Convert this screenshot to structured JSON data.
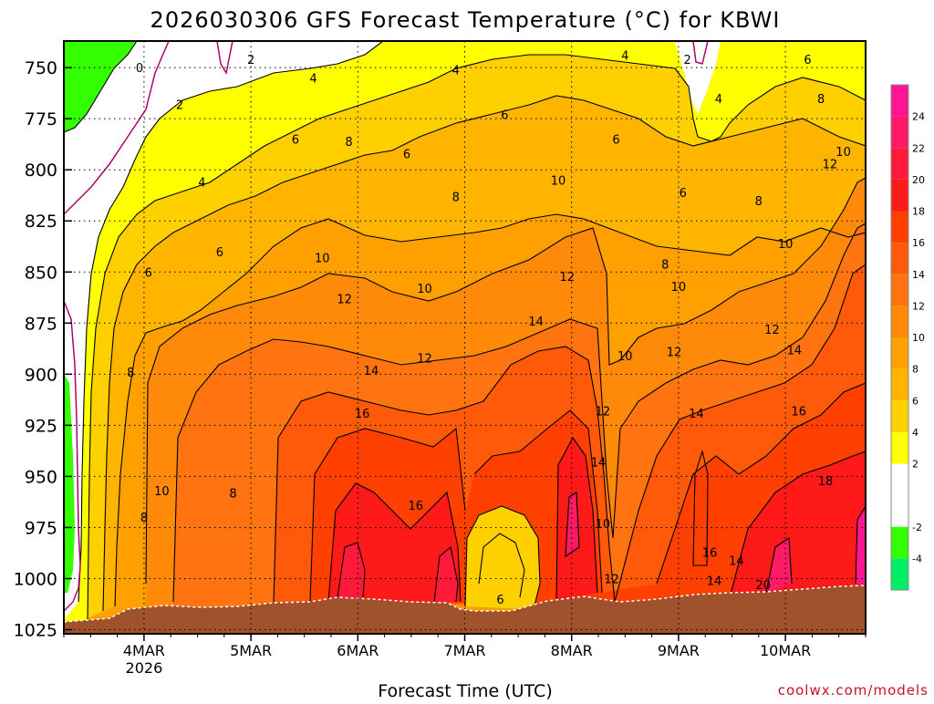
{
  "chart_data": {
    "type": "heatmap",
    "title": "2026030306 GFS Forecast Temperature (°C) for KBWI",
    "xlabel": "Forecast Time (UTC)",
    "ylabel": "",
    "credit": "coolwx.com/models",
    "x_ticks": [
      {
        "label": "4MAR",
        "sublabel": "2026",
        "hours": 18
      },
      {
        "label": "5MAR",
        "hours": 42
      },
      {
        "label": "6MAR",
        "hours": 66
      },
      {
        "label": "7MAR",
        "hours": 90
      },
      {
        "label": "8MAR",
        "hours": 114
      },
      {
        "label": "9MAR",
        "hours": 138
      },
      {
        "label": "10MAR",
        "hours": 162
      }
    ],
    "xlim_hours": [
      0,
      180
    ],
    "y_ticks": [
      750,
      775,
      800,
      825,
      850,
      875,
      900,
      925,
      950,
      975,
      1000,
      1025
    ],
    "ylim_hpa": [
      1027,
      737
    ],
    "grid": true,
    "colorbar": {
      "labels": [
        24,
        22,
        20,
        18,
        16,
        14,
        12,
        10,
        8,
        6,
        4,
        2,
        -2,
        -4
      ],
      "bands": [
        {
          "min": 24,
          "max": 26,
          "color": "#ff1493"
        },
        {
          "min": 22,
          "max": 24,
          "color": "#ff1a66"
        },
        {
          "min": 20,
          "max": 22,
          "color": "#ff1a3c"
        },
        {
          "min": 18,
          "max": 20,
          "color": "#ff1a1a"
        },
        {
          "min": 16,
          "max": 18,
          "color": "#ff4000"
        },
        {
          "min": 14,
          "max": 16,
          "color": "#ff5a0a"
        },
        {
          "min": 12,
          "max": 14,
          "color": "#ff7310"
        },
        {
          "min": 10,
          "max": 12,
          "color": "#ff8a0a"
        },
        {
          "min": 8,
          "max": 10,
          "color": "#ffa000"
        },
        {
          "min": 6,
          "max": 8,
          "color": "#ffb400"
        },
        {
          "min": 4,
          "max": 6,
          "color": "#ffd000"
        },
        {
          "min": 2,
          "max": 4,
          "color": "#ffff00"
        },
        {
          "min": -2,
          "max": 2,
          "color": "#ffffff"
        },
        {
          "min": -4,
          "max": -2,
          "color": "#33ff00"
        },
        {
          "min": -6,
          "max": -4,
          "color": "#00ee66"
        }
      ]
    },
    "ground_color": "#a0522d",
    "contour_labels": [
      {
        "value": "0",
        "hours": 17,
        "hpa": 750
      },
      {
        "value": "2",
        "hours": 26,
        "hpa": 768
      },
      {
        "value": "2",
        "hours": 42,
        "hpa": 746
      },
      {
        "value": "2",
        "hours": 140,
        "hpa": 746
      },
      {
        "value": "4",
        "hours": 31,
        "hpa": 806
      },
      {
        "value": "4",
        "hours": 56,
        "hpa": 755
      },
      {
        "value": "4",
        "hours": 88,
        "hpa": 751
      },
      {
        "value": "4",
        "hours": 126,
        "hpa": 744
      },
      {
        "value": "4",
        "hours": 147,
        "hpa": 765
      },
      {
        "value": "6",
        "hours": 52,
        "hpa": 785
      },
      {
        "value": "6",
        "hours": 35,
        "hpa": 840
      },
      {
        "value": "6",
        "hours": 19,
        "hpa": 850
      },
      {
        "value": "6",
        "hours": 77,
        "hpa": 792
      },
      {
        "value": "6",
        "hours": 99,
        "hpa": 773
      },
      {
        "value": "6",
        "hours": 124,
        "hpa": 785
      },
      {
        "value": "6",
        "hours": 139,
        "hpa": 811
      },
      {
        "value": "6",
        "hours": 167,
        "hpa": 746
      },
      {
        "value": "8",
        "hours": 64,
        "hpa": 786
      },
      {
        "value": "8",
        "hours": 88,
        "hpa": 813
      },
      {
        "value": "8",
        "hours": 15,
        "hpa": 899
      },
      {
        "value": "8",
        "hours": 18,
        "hpa": 970
      },
      {
        "value": "8",
        "hours": 38,
        "hpa": 958
      },
      {
        "value": "8",
        "hours": 135,
        "hpa": 846
      },
      {
        "value": "8",
        "hours": 156,
        "hpa": 815
      },
      {
        "value": "8",
        "hours": 170,
        "hpa": 765
      },
      {
        "value": "10",
        "hours": 58,
        "hpa": 843
      },
      {
        "value": "10",
        "hours": 81,
        "hpa": 858
      },
      {
        "value": "10",
        "hours": 22,
        "hpa": 957
      },
      {
        "value": "10",
        "hours": 111,
        "hpa": 805
      },
      {
        "value": "10",
        "hours": 126,
        "hpa": 891
      },
      {
        "value": "10",
        "hours": 138,
        "hpa": 857
      },
      {
        "value": "10",
        "hours": 162,
        "hpa": 836
      },
      {
        "value": "10",
        "hours": 175,
        "hpa": 791
      },
      {
        "value": "10",
        "hours": 121,
        "hpa": 973
      },
      {
        "value": "12",
        "hours": 63,
        "hpa": 863
      },
      {
        "value": "12",
        "hours": 81,
        "hpa": 892
      },
      {
        "value": "12",
        "hours": 113,
        "hpa": 852
      },
      {
        "value": "12",
        "hours": 121,
        "hpa": 918
      },
      {
        "value": "12",
        "hours": 137,
        "hpa": 889
      },
      {
        "value": "12",
        "hours": 159,
        "hpa": 878
      },
      {
        "value": "12",
        "hours": 172,
        "hpa": 797
      },
      {
        "value": "12",
        "hours": 123,
        "hpa": 1000
      },
      {
        "value": "14",
        "hours": 69,
        "hpa": 898
      },
      {
        "value": "14",
        "hours": 106,
        "hpa": 874
      },
      {
        "value": "14",
        "hours": 120,
        "hpa": 943
      },
      {
        "value": "14",
        "hours": 142,
        "hpa": 919
      },
      {
        "value": "14",
        "hours": 164,
        "hpa": 888
      },
      {
        "value": "14",
        "hours": 151,
        "hpa": 991
      },
      {
        "value": "14",
        "hours": 146,
        "hpa": 1001
      },
      {
        "value": "16",
        "hours": 67,
        "hpa": 919
      },
      {
        "value": "16",
        "hours": 79,
        "hpa": 964
      },
      {
        "value": "16",
        "hours": 145,
        "hpa": 987
      },
      {
        "value": "16",
        "hours": 165,
        "hpa": 918
      },
      {
        "value": "18",
        "hours": 171,
        "hpa": 952
      },
      {
        "value": "20",
        "hours": 157,
        "hpa": 1003
      },
      {
        "value": "6",
        "hours": 98,
        "hpa": 1010
      }
    ]
  }
}
